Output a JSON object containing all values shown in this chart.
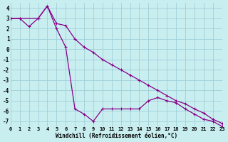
{
  "background_color": "#c8eef0",
  "grid_color": "#a0d0d8",
  "line_color": "#880088",
  "xlabel": "Windchill (Refroidissement éolien,°C)",
  "xlim": [
    0,
    23
  ],
  "ylim": [
    -7.5,
    4.5
  ],
  "yticks": [
    -7,
    -6,
    -5,
    -4,
    -3,
    -2,
    -1,
    0,
    1,
    2,
    3,
    4
  ],
  "xticks": [
    0,
    1,
    2,
    3,
    4,
    5,
    6,
    7,
    8,
    9,
    10,
    11,
    12,
    13,
    14,
    15,
    16,
    17,
    18,
    19,
    20,
    21,
    22,
    23
  ],
  "line1_x": [
    0,
    1,
    3,
    4,
    5,
    6,
    7,
    8,
    9,
    10,
    11,
    12,
    13,
    14,
    15,
    16,
    17,
    18,
    19,
    20,
    21,
    22,
    23
  ],
  "line1_y": [
    3.0,
    3.0,
    3.0,
    4.2,
    2.5,
    2.3,
    1.0,
    0.2,
    -0.3,
    -1.0,
    -1.5,
    -2.0,
    -2.5,
    -3.0,
    -3.5,
    -4.0,
    -4.5,
    -5.0,
    -5.3,
    -5.8,
    -6.2,
    -6.8,
    -7.2
  ],
  "line2_x": [
    0,
    1,
    2,
    3,
    4,
    5,
    6,
    7,
    8,
    9,
    10,
    11,
    12,
    13,
    14,
    15,
    16,
    17,
    18,
    19,
    20,
    21,
    22,
    23
  ],
  "line2_y": [
    3.0,
    3.0,
    2.2,
    3.0,
    4.2,
    2.0,
    0.2,
    -5.8,
    -6.3,
    -7.0,
    -5.8,
    -5.8,
    -5.8,
    -5.8,
    -5.8,
    -5.0,
    -4.7,
    -5.0,
    -5.2,
    -5.8,
    -6.3,
    -6.8,
    -7.0,
    -7.5
  ],
  "ylabel_fontsize": 5.5,
  "xlabel_fontsize": 5.5,
  "tick_fontsize": 5.5,
  "linewidth": 0.9,
  "markersize": 3.5
}
